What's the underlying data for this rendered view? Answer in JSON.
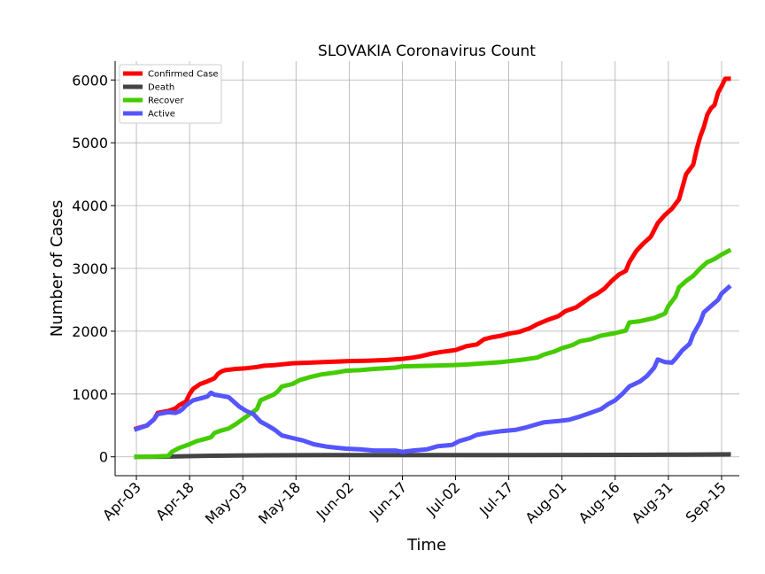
{
  "chart_data": {
    "type": "line",
    "title": "SLOVAKIA Coronavirus Count",
    "xlabel": "Time",
    "ylabel": "Number of Cases",
    "x_ticks": [
      "Apr-03",
      "Apr-18",
      "May-03",
      "May-18",
      "Jun-02",
      "Jun-17",
      "Jul-02",
      "Jul-17",
      "Aug-01",
      "Aug-16",
      "Aug-31",
      "Sep-15"
    ],
    "y_ticks": [
      0,
      1000,
      2000,
      3000,
      4000,
      5000,
      6000
    ],
    "ylim": [
      -300,
      6300
    ],
    "xlim": [
      "2020-03-28",
      "2020-09-20"
    ],
    "grid": true,
    "legend_position": "top-left",
    "x_format": "date (day offsets from Apr-03 sampled)",
    "series": [
      {
        "name": "Confirmed Case",
        "color": "#ff0000",
        "points": [
          [
            "2020-04-03",
            450
          ],
          [
            "2020-04-06",
            500
          ],
          [
            "2020-04-08",
            600
          ],
          [
            "2020-04-09",
            700
          ],
          [
            "2020-04-12",
            730
          ],
          [
            "2020-04-14",
            770
          ],
          [
            "2020-04-15",
            820
          ],
          [
            "2020-04-17",
            880
          ],
          [
            "2020-04-18",
            1000
          ],
          [
            "2020-04-19",
            1080
          ],
          [
            "2020-04-21",
            1160
          ],
          [
            "2020-04-23",
            1200
          ],
          [
            "2020-04-25",
            1250
          ],
          [
            "2020-04-26",
            1320
          ],
          [
            "2020-04-27",
            1360
          ],
          [
            "2020-04-28",
            1380
          ],
          [
            "2020-05-01",
            1400
          ],
          [
            "2020-05-04",
            1410
          ],
          [
            "2020-05-07",
            1430
          ],
          [
            "2020-05-09",
            1450
          ],
          [
            "2020-05-12",
            1460
          ],
          [
            "2020-05-17",
            1490
          ],
          [
            "2020-05-22",
            1500
          ],
          [
            "2020-05-29",
            1515
          ],
          [
            "2020-06-02",
            1525
          ],
          [
            "2020-06-07",
            1530
          ],
          [
            "2020-06-12",
            1540
          ],
          [
            "2020-06-17",
            1560
          ],
          [
            "2020-06-20",
            1580
          ],
          [
            "2020-06-22",
            1600
          ],
          [
            "2020-06-25",
            1640
          ],
          [
            "2020-06-28",
            1670
          ],
          [
            "2020-07-02",
            1700
          ],
          [
            "2020-07-05",
            1760
          ],
          [
            "2020-07-08",
            1790
          ],
          [
            "2020-07-10",
            1870
          ],
          [
            "2020-07-12",
            1900
          ],
          [
            "2020-07-15",
            1930
          ],
          [
            "2020-07-17",
            1960
          ],
          [
            "2020-07-20",
            1990
          ],
          [
            "2020-07-23",
            2050
          ],
          [
            "2020-07-25",
            2110
          ],
          [
            "2020-07-28",
            2180
          ],
          [
            "2020-07-31",
            2240
          ],
          [
            "2020-08-02",
            2320
          ],
          [
            "2020-08-05",
            2380
          ],
          [
            "2020-08-07",
            2460
          ],
          [
            "2020-08-09",
            2540
          ],
          [
            "2020-08-11",
            2600
          ],
          [
            "2020-08-13",
            2680
          ],
          [
            "2020-08-15",
            2800
          ],
          [
            "2020-08-17",
            2900
          ],
          [
            "2020-08-19",
            2960
          ],
          [
            "2020-08-20",
            3100
          ],
          [
            "2020-08-22",
            3280
          ],
          [
            "2020-08-24",
            3400
          ],
          [
            "2020-08-26",
            3500
          ],
          [
            "2020-08-28",
            3720
          ],
          [
            "2020-08-30",
            3850
          ],
          [
            "2020-09-01",
            3950
          ],
          [
            "2020-09-03",
            4100
          ],
          [
            "2020-09-04",
            4300
          ],
          [
            "2020-09-05",
            4500
          ],
          [
            "2020-09-07",
            4650
          ],
          [
            "2020-09-08",
            4900
          ],
          [
            "2020-09-09",
            5100
          ],
          [
            "2020-09-10",
            5250
          ],
          [
            "2020-09-11",
            5450
          ],
          [
            "2020-09-12",
            5550
          ],
          [
            "2020-09-13",
            5600
          ],
          [
            "2020-09-14",
            5800
          ],
          [
            "2020-09-15",
            5900
          ],
          [
            "2020-09-16",
            6020
          ],
          [
            "2020-09-17",
            6020
          ]
        ]
      },
      {
        "name": "Death",
        "color": "#444444",
        "points": [
          [
            "2020-04-03",
            0
          ],
          [
            "2020-04-10",
            2
          ],
          [
            "2020-04-17",
            10
          ],
          [
            "2020-04-24",
            18
          ],
          [
            "2020-05-01",
            22
          ],
          [
            "2020-05-10",
            25
          ],
          [
            "2020-05-25",
            27
          ],
          [
            "2020-06-15",
            28
          ],
          [
            "2020-07-15",
            28
          ],
          [
            "2020-08-01",
            30
          ],
          [
            "2020-08-20",
            32
          ],
          [
            "2020-09-05",
            36
          ],
          [
            "2020-09-17",
            40
          ]
        ]
      },
      {
        "name": "Recover",
        "color": "#44cc00",
        "points": [
          [
            "2020-04-03",
            0
          ],
          [
            "2020-04-08",
            5
          ],
          [
            "2020-04-12",
            15
          ],
          [
            "2020-04-13",
            80
          ],
          [
            "2020-04-15",
            140
          ],
          [
            "2020-04-18",
            200
          ],
          [
            "2020-04-20",
            250
          ],
          [
            "2020-04-22",
            280
          ],
          [
            "2020-04-24",
            310
          ],
          [
            "2020-04-25",
            380
          ],
          [
            "2020-04-27",
            420
          ],
          [
            "2020-04-29",
            450
          ],
          [
            "2020-05-01",
            520
          ],
          [
            "2020-05-03",
            600
          ],
          [
            "2020-05-05",
            680
          ],
          [
            "2020-05-07",
            760
          ],
          [
            "2020-05-08",
            900
          ],
          [
            "2020-05-10",
            950
          ],
          [
            "2020-05-12",
            1000
          ],
          [
            "2020-05-13",
            1050
          ],
          [
            "2020-05-14",
            1120
          ],
          [
            "2020-05-17",
            1160
          ],
          [
            "2020-05-19",
            1220
          ],
          [
            "2020-05-22",
            1270
          ],
          [
            "2020-05-25",
            1310
          ],
          [
            "2020-05-29",
            1340
          ],
          [
            "2020-06-01",
            1370
          ],
          [
            "2020-06-05",
            1380
          ],
          [
            "2020-06-09",
            1400
          ],
          [
            "2020-06-15",
            1420
          ],
          [
            "2020-06-17",
            1440
          ],
          [
            "2020-06-25",
            1450
          ],
          [
            "2020-07-01",
            1460
          ],
          [
            "2020-07-05",
            1470
          ],
          [
            "2020-07-10",
            1490
          ],
          [
            "2020-07-15",
            1510
          ],
          [
            "2020-07-20",
            1540
          ],
          [
            "2020-07-25",
            1580
          ],
          [
            "2020-07-27",
            1630
          ],
          [
            "2020-07-30",
            1680
          ],
          [
            "2020-08-01",
            1730
          ],
          [
            "2020-08-04",
            1780
          ],
          [
            "2020-08-06",
            1840
          ],
          [
            "2020-08-09",
            1870
          ],
          [
            "2020-08-12",
            1930
          ],
          [
            "2020-08-16",
            1970
          ],
          [
            "2020-08-19",
            2010
          ],
          [
            "2020-08-20",
            2140
          ],
          [
            "2020-08-23",
            2160
          ],
          [
            "2020-08-27",
            2210
          ],
          [
            "2020-08-30",
            2280
          ],
          [
            "2020-08-31",
            2400
          ],
          [
            "2020-09-02",
            2550
          ],
          [
            "2020-09-03",
            2700
          ],
          [
            "2020-09-05",
            2800
          ],
          [
            "2020-09-07",
            2880
          ],
          [
            "2020-09-09",
            3000
          ],
          [
            "2020-09-11",
            3100
          ],
          [
            "2020-09-13",
            3150
          ],
          [
            "2020-09-15",
            3220
          ],
          [
            "2020-09-17",
            3280
          ]
        ]
      },
      {
        "name": "Active",
        "color": "#5555ff",
        "points": [
          [
            "2020-04-03",
            440
          ],
          [
            "2020-04-06",
            500
          ],
          [
            "2020-04-08",
            600
          ],
          [
            "2020-04-09",
            680
          ],
          [
            "2020-04-12",
            710
          ],
          [
            "2020-04-14",
            700
          ],
          [
            "2020-04-15",
            720
          ],
          [
            "2020-04-16",
            760
          ],
          [
            "2020-04-17",
            820
          ],
          [
            "2020-04-19",
            900
          ],
          [
            "2020-04-21",
            930
          ],
          [
            "2020-04-23",
            960
          ],
          [
            "2020-04-24",
            1020
          ],
          [
            "2020-04-25",
            990
          ],
          [
            "2020-04-27",
            970
          ],
          [
            "2020-04-29",
            950
          ],
          [
            "2020-04-30",
            900
          ],
          [
            "2020-05-02",
            800
          ],
          [
            "2020-05-04",
            730
          ],
          [
            "2020-05-06",
            680
          ],
          [
            "2020-05-08",
            560
          ],
          [
            "2020-05-10",
            500
          ],
          [
            "2020-05-12",
            430
          ],
          [
            "2020-05-14",
            340
          ],
          [
            "2020-05-17",
            300
          ],
          [
            "2020-05-20",
            260
          ],
          [
            "2020-05-23",
            200
          ],
          [
            "2020-05-27",
            160
          ],
          [
            "2020-06-01",
            130
          ],
          [
            "2020-06-05",
            120
          ],
          [
            "2020-06-09",
            100
          ],
          [
            "2020-06-15",
            100
          ],
          [
            "2020-06-17",
            80
          ],
          [
            "2020-06-20",
            100
          ],
          [
            "2020-06-24",
            120
          ],
          [
            "2020-06-27",
            170
          ],
          [
            "2020-07-01",
            190
          ],
          [
            "2020-07-03",
            250
          ],
          [
            "2020-07-06",
            300
          ],
          [
            "2020-07-08",
            350
          ],
          [
            "2020-07-11",
            380
          ],
          [
            "2020-07-15",
            410
          ],
          [
            "2020-07-19",
            430
          ],
          [
            "2020-07-22",
            470
          ],
          [
            "2020-07-25",
            520
          ],
          [
            "2020-07-27",
            550
          ],
          [
            "2020-07-31",
            570
          ],
          [
            "2020-08-03",
            590
          ],
          [
            "2020-08-06",
            640
          ],
          [
            "2020-08-09",
            700
          ],
          [
            "2020-08-12",
            760
          ],
          [
            "2020-08-14",
            840
          ],
          [
            "2020-08-16",
            900
          ],
          [
            "2020-08-18",
            1000
          ],
          [
            "2020-08-20",
            1120
          ],
          [
            "2020-08-23",
            1200
          ],
          [
            "2020-08-25",
            1290
          ],
          [
            "2020-08-27",
            1420
          ],
          [
            "2020-08-28",
            1550
          ],
          [
            "2020-08-30",
            1510
          ],
          [
            "2020-09-01",
            1500
          ],
          [
            "2020-09-02",
            1560
          ],
          [
            "2020-09-04",
            1700
          ],
          [
            "2020-09-06",
            1800
          ],
          [
            "2020-09-07",
            1950
          ],
          [
            "2020-09-09",
            2150
          ],
          [
            "2020-09-10",
            2300
          ],
          [
            "2020-09-12",
            2400
          ],
          [
            "2020-09-14",
            2500
          ],
          [
            "2020-09-15",
            2600
          ],
          [
            "2020-09-17",
            2700
          ]
        ]
      }
    ]
  }
}
